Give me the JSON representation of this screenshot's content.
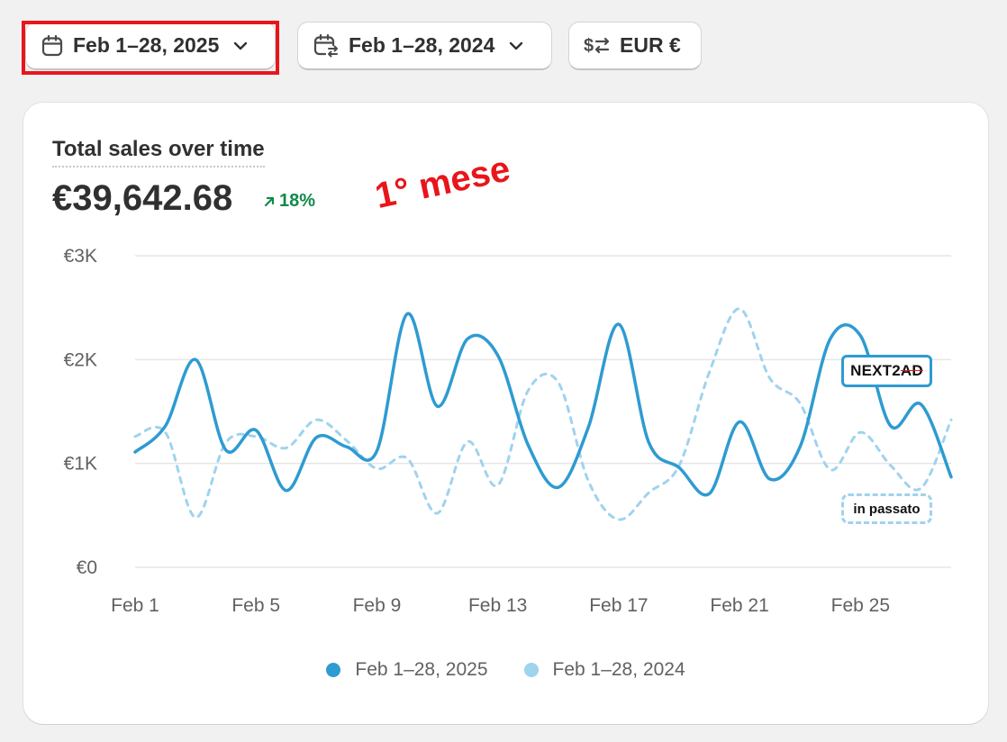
{
  "toolbar": {
    "date_current": {
      "label": "Feb 1–28, 2025",
      "icon": "calendar-icon"
    },
    "date_compare": {
      "label": "Feb 1–28, 2024",
      "icon": "calendar-compare-icon"
    },
    "currency": {
      "label": "EUR €",
      "icon": "currency-exchange-icon"
    }
  },
  "card": {
    "title": "Total sales over time",
    "value": "€39,642.68",
    "delta": {
      "label": "18%",
      "direction": "up",
      "color": "#0f8a4c"
    },
    "annotation": "1° mese",
    "tag_logo": {
      "label_prefix": "NEXT2",
      "label_suffix": "AD"
    },
    "tag_past": "in passato"
  },
  "colors": {
    "accent_red": "#e8161b",
    "series_current": "#2e9bd1",
    "series_previous": "#9fd3ee",
    "positive": "#0f8a4c"
  },
  "chart_data": {
    "type": "line",
    "x": [
      "Feb 1",
      "Feb 2",
      "Feb 3",
      "Feb 4",
      "Feb 5",
      "Feb 6",
      "Feb 7",
      "Feb 8",
      "Feb 9",
      "Feb 10",
      "Feb 11",
      "Feb 12",
      "Feb 13",
      "Feb 14",
      "Feb 15",
      "Feb 16",
      "Feb 17",
      "Feb 18",
      "Feb 19",
      "Feb 20",
      "Feb 21",
      "Feb 22",
      "Feb 23",
      "Feb 24",
      "Feb 25",
      "Feb 26",
      "Feb 27",
      "Feb 28"
    ],
    "x_ticks": [
      "Feb 1",
      "Feb 5",
      "Feb 9",
      "Feb 13",
      "Feb 17",
      "Feb 21",
      "Feb 25"
    ],
    "y_ticks": [
      "€0",
      "€1K",
      "€2K",
      "€3K"
    ],
    "ylim": [
      0,
      3000
    ],
    "series": [
      {
        "name": "Feb 1–28, 2025",
        "style": "solid",
        "color": "#2e9bd1",
        "values": [
          1110,
          1360,
          2000,
          1130,
          1320,
          740,
          1250,
          1160,
          1120,
          2440,
          1550,
          2200,
          2040,
          1180,
          770,
          1350,
          2340,
          1200,
          960,
          710,
          1400,
          850,
          1160,
          2200,
          2230,
          1360,
          1570,
          870
        ]
      },
      {
        "name": "Feb 1–28, 2024",
        "style": "dashed",
        "color": "#9fd3ee",
        "values": [
          1260,
          1300,
          480,
          1200,
          1260,
          1150,
          1420,
          1220,
          950,
          1050,
          520,
          1210,
          790,
          1700,
          1780,
          830,
          460,
          720,
          980,
          1880,
          2490,
          1820,
          1580,
          940,
          1300,
          980,
          760,
          1420
        ]
      }
    ],
    "legend": "bottom-center",
    "grid": true
  }
}
